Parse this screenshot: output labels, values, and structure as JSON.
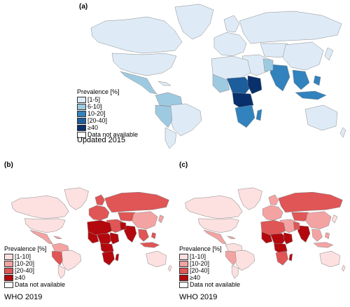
{
  "panels": [
    {
      "id": "a",
      "label": "(a)",
      "source": "Updated 2015",
      "legend": {
        "title": "Prevalence [%]",
        "items": [
          {
            "label": "[1-5]",
            "color": "#deebf7"
          },
          {
            "label": "6-10]",
            "color": "#9ecae1"
          },
          {
            "label": "10-20]",
            "color": "#3182bd"
          },
          {
            "label": "[20-40]",
            "color": "#1c5d9c"
          },
          {
            "label": "≥40",
            "color": "#08306b"
          },
          {
            "label": "Data not available",
            "color": "#ffffff"
          }
        ]
      }
    },
    {
      "id": "b",
      "label": "(b)",
      "source": "WHO 2019",
      "legend": {
        "title": "Prevalence [%]",
        "items": [
          {
            "label": "[1-10]",
            "color": "#fde0e0"
          },
          {
            "label": "[10-20]",
            "color": "#f4a3a3"
          },
          {
            "label": "[20-40]",
            "color": "#e05555"
          },
          {
            "label": "≥40",
            "color": "#b3080d"
          },
          {
            "label": "Data not available",
            "color": "#ffffff"
          }
        ]
      }
    },
    {
      "id": "c",
      "label": "(c)",
      "source": "WHO 2019",
      "legend": {
        "title": "Prevalence [%]",
        "items": [
          {
            "label": "[1-10]",
            "color": "#fde0e0"
          },
          {
            "label": "[10-20]",
            "color": "#f4a3a3"
          },
          {
            "label": "[20-40]",
            "color": "#e05555"
          },
          {
            "label": "≥40",
            "color": "#b3080d"
          },
          {
            "label": "Data not available",
            "color": "#ffffff"
          }
        ]
      }
    }
  ],
  "colors": {
    "blue_low": "#deebf7",
    "blue_mid": "#9ecae1",
    "blue_high": "#3182bd",
    "blue_higher": "#1c5d9c",
    "blue_max": "#08306b",
    "red_low": "#fde0e0",
    "red_mid": "#f4a3a3",
    "red_high": "#e05555",
    "red_max": "#b3080d",
    "border": "#8a8a8a"
  }
}
